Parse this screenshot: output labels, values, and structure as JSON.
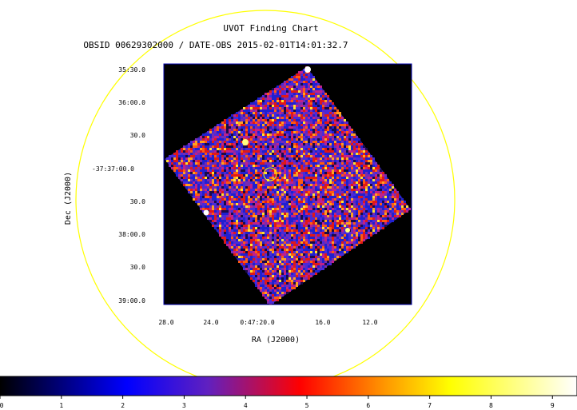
{
  "chart_data": {
    "type": "heatmap",
    "title": "UVOT Finding Chart",
    "subtitle": "OBSID 00629302000 / DATE-OBS 2015-02-01T14:01:32.7",
    "xlabel": "RA (J2000)",
    "ylabel": "Dec (J2000)",
    "x_ticks": [
      "28.0",
      "24.0",
      "0:47:20.0",
      "16.0",
      "12.0"
    ],
    "y_ticks": [
      "35:30.0",
      "36:00.0",
      "30.0",
      "-37:37:00.0",
      "30.0",
      "38:00.0",
      "30.0",
      "39:00.0"
    ],
    "colorbar": {
      "ticks": [
        "0",
        "1",
        "2",
        "3",
        "4",
        "5",
        "6",
        "7",
        "8",
        "9"
      ],
      "range": [
        0,
        9.4
      ],
      "colormap": [
        "#000000",
        "#0000ff",
        "#ff0000",
        "#ffff00",
        "#ffffff"
      ]
    },
    "colors": {
      "frame": "#0000aa",
      "circle": "#ffff00",
      "target_marker": "#ffff00",
      "background": "#000000"
    }
  }
}
